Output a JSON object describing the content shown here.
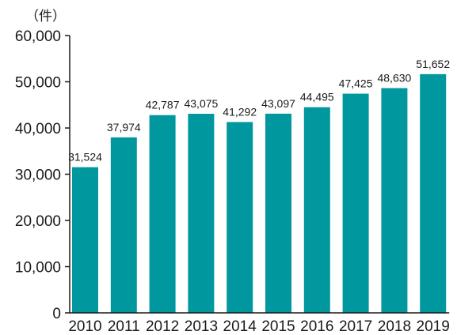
{
  "chart_data": {
    "type": "bar",
    "unit_label": "（件）",
    "categories": [
      "2010",
      "2011",
      "2012",
      "2013",
      "2014",
      "2015",
      "2016",
      "2017",
      "2018",
      "2019"
    ],
    "values": [
      31524,
      37974,
      42787,
      43075,
      41292,
      43097,
      44495,
      47425,
      48630,
      51652
    ],
    "value_labels": [
      "31,524",
      "37,974",
      "42,787",
      "43,075",
      "41,292",
      "43,097",
      "44,495",
      "47,425",
      "48,630",
      "51,652"
    ],
    "yticks": [
      "0",
      "10,000",
      "20,000",
      "30,000",
      "40,000",
      "50,000",
      "60,000"
    ],
    "ylim": [
      0,
      60000
    ],
    "ytick_step": 10000,
    "bar_color": "#00979f",
    "grid": false,
    "legend": "none"
  }
}
